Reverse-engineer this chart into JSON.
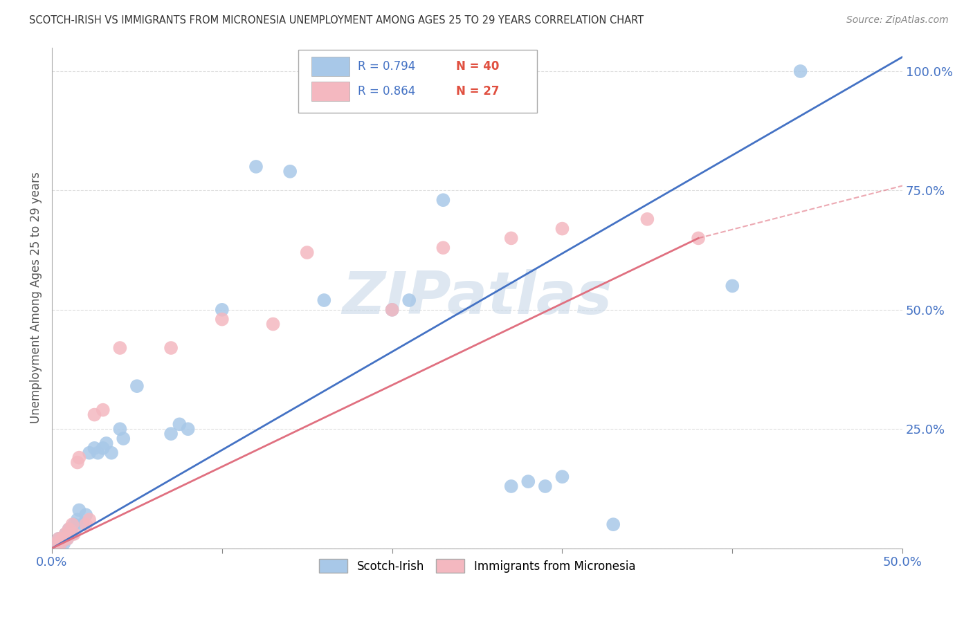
{
  "title": "SCOTCH-IRISH VS IMMIGRANTS FROM MICRONESIA UNEMPLOYMENT AMONG AGES 25 TO 29 YEARS CORRELATION CHART",
  "source": "Source: ZipAtlas.com",
  "ylabel": "Unemployment Among Ages 25 to 29 years",
  "xlim": [
    0.0,
    0.5
  ],
  "ylim": [
    0.0,
    1.05
  ],
  "R_blue": 0.794,
  "N_blue": 40,
  "R_pink": 0.864,
  "N_pink": 27,
  "blue_color": "#a8c8e8",
  "pink_color": "#f4b8c0",
  "blue_line_color": "#4472c4",
  "pink_line_color": "#e07080",
  "blue_scatter": [
    [
      0.003,
      0.01
    ],
    [
      0.004,
      0.02
    ],
    [
      0.005,
      0.01
    ],
    [
      0.006,
      0.02
    ],
    [
      0.007,
      0.01
    ],
    [
      0.008,
      0.03
    ],
    [
      0.009,
      0.02
    ],
    [
      0.01,
      0.04
    ],
    [
      0.012,
      0.03
    ],
    [
      0.013,
      0.05
    ],
    [
      0.015,
      0.06
    ],
    [
      0.016,
      0.08
    ],
    [
      0.018,
      0.05
    ],
    [
      0.02,
      0.07
    ],
    [
      0.022,
      0.2
    ],
    [
      0.025,
      0.21
    ],
    [
      0.027,
      0.2
    ],
    [
      0.03,
      0.21
    ],
    [
      0.032,
      0.22
    ],
    [
      0.035,
      0.2
    ],
    [
      0.04,
      0.25
    ],
    [
      0.042,
      0.23
    ],
    [
      0.05,
      0.34
    ],
    [
      0.07,
      0.24
    ],
    [
      0.075,
      0.26
    ],
    [
      0.08,
      0.25
    ],
    [
      0.1,
      0.5
    ],
    [
      0.12,
      0.8
    ],
    [
      0.14,
      0.79
    ],
    [
      0.16,
      0.52
    ],
    [
      0.2,
      0.5
    ],
    [
      0.21,
      0.52
    ],
    [
      0.23,
      0.73
    ],
    [
      0.27,
      0.13
    ],
    [
      0.28,
      0.14
    ],
    [
      0.29,
      0.13
    ],
    [
      0.3,
      0.15
    ],
    [
      0.33,
      0.05
    ],
    [
      0.4,
      0.55
    ],
    [
      0.44,
      1.0
    ]
  ],
  "pink_scatter": [
    [
      0.003,
      0.01
    ],
    [
      0.004,
      0.02
    ],
    [
      0.005,
      0.01
    ],
    [
      0.006,
      0.02
    ],
    [
      0.007,
      0.02
    ],
    [
      0.008,
      0.03
    ],
    [
      0.009,
      0.02
    ],
    [
      0.01,
      0.04
    ],
    [
      0.012,
      0.05
    ],
    [
      0.013,
      0.03
    ],
    [
      0.015,
      0.18
    ],
    [
      0.016,
      0.19
    ],
    [
      0.02,
      0.05
    ],
    [
      0.022,
      0.06
    ],
    [
      0.025,
      0.28
    ],
    [
      0.03,
      0.29
    ],
    [
      0.04,
      0.42
    ],
    [
      0.07,
      0.42
    ],
    [
      0.1,
      0.48
    ],
    [
      0.13,
      0.47
    ],
    [
      0.15,
      0.62
    ],
    [
      0.2,
      0.5
    ],
    [
      0.23,
      0.63
    ],
    [
      0.27,
      0.65
    ],
    [
      0.3,
      0.67
    ],
    [
      0.35,
      0.69
    ],
    [
      0.38,
      0.65
    ]
  ],
  "blue_line": [
    [
      0.0,
      0.0
    ],
    [
      0.5,
      1.03
    ]
  ],
  "pink_line_solid": [
    [
      0.0,
      0.0
    ],
    [
      0.38,
      0.65
    ]
  ],
  "pink_line_dashed": [
    [
      0.38,
      0.65
    ],
    [
      0.5,
      0.76
    ]
  ],
  "watermark": "ZIPatlas",
  "watermark_color": "#c8d8e8",
  "background_color": "#ffffff",
  "grid_color": "#dddddd"
}
